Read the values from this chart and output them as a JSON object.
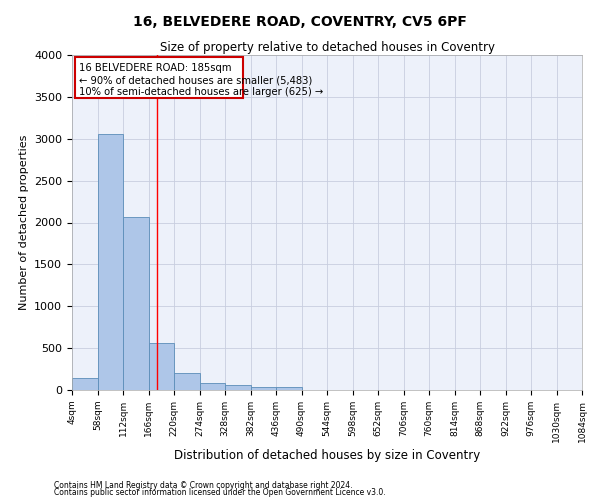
{
  "title": "16, BELVEDERE ROAD, COVENTRY, CV5 6PF",
  "subtitle": "Size of property relative to detached houses in Coventry",
  "xlabel": "Distribution of detached houses by size in Coventry",
  "ylabel": "Number of detached properties",
  "footer_line1": "Contains HM Land Registry data © Crown copyright and database right 2024.",
  "footer_line2": "Contains public sector information licensed under the Open Government Licence v3.0.",
  "bin_edges": [
    4,
    58,
    112,
    166,
    220,
    274,
    328,
    382,
    436,
    490,
    544,
    598,
    652,
    706,
    760,
    814,
    868,
    922,
    976,
    1030,
    1084
  ],
  "bar_heights": [
    140,
    3060,
    2060,
    560,
    200,
    80,
    55,
    35,
    35,
    0,
    0,
    0,
    0,
    0,
    0,
    0,
    0,
    0,
    0,
    0
  ],
  "bar_color": "#aec6e8",
  "bar_edge_color": "#5b8db8",
  "grid_color": "#c8cedf",
  "bg_color": "#edf1fa",
  "red_line_x": 185,
  "ylim": [
    0,
    4000
  ],
  "annotation_text_line1": "16 BELVEDERE ROAD: 185sqm",
  "annotation_text_line2": "← 90% of detached houses are smaller (5,483)",
  "annotation_text_line3": "10% of semi-detached houses are larger (625) →",
  "annotation_box_color": "#cc0000",
  "yticks": [
    0,
    500,
    1000,
    1500,
    2000,
    2500,
    3000,
    3500,
    4000
  ]
}
